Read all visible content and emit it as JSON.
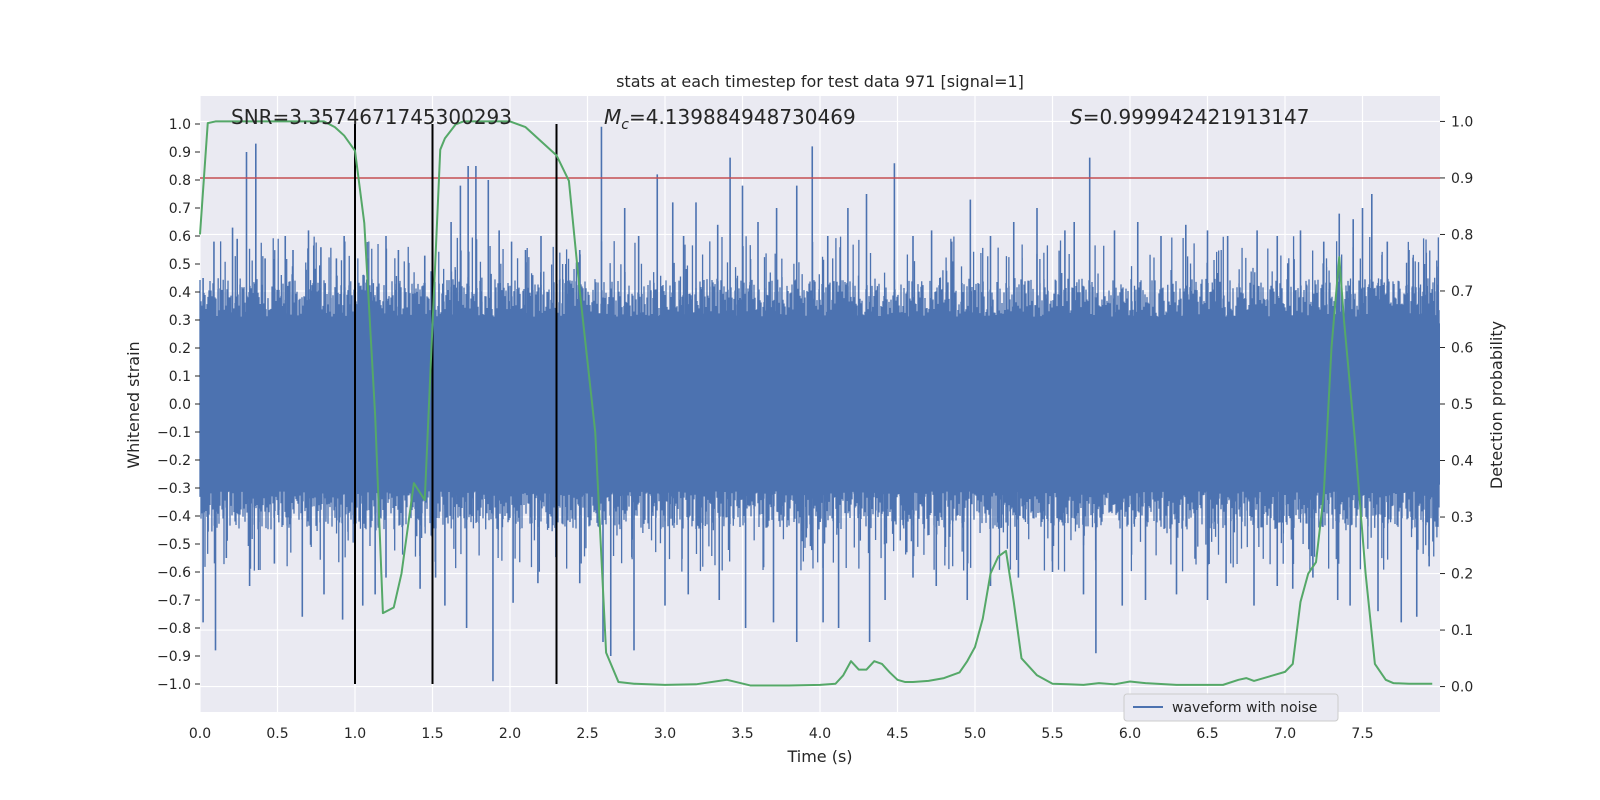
{
  "chart_data": {
    "type": "line",
    "title": "stats at each timestep for test data 971 [signal=1]",
    "xlabel": "Time (s)",
    "ylabel": "Whitened strain",
    "y2label": "Detection probability",
    "xlim": [
      0.0,
      8.0
    ],
    "ylim": [
      -1.1,
      1.1
    ],
    "y2lim": [
      -0.045,
      1.045
    ],
    "xticks": [
      0.0,
      0.5,
      1.0,
      1.5,
      2.0,
      2.5,
      3.0,
      3.5,
      4.0,
      4.5,
      5.0,
      5.5,
      6.0,
      6.5,
      7.0,
      7.5
    ],
    "xtick_labels": [
      "0.0",
      "0.5",
      "1.0",
      "1.5",
      "2.0",
      "2.5",
      "3.0",
      "3.5",
      "4.0",
      "4.5",
      "5.0",
      "5.5",
      "6.0",
      "6.5",
      "7.0",
      "7.5"
    ],
    "yticks": [
      1.0,
      0.9,
      0.8,
      0.7,
      0.6,
      0.5,
      0.4,
      0.3,
      0.2,
      0.1,
      0.0,
      -0.1,
      -0.2,
      -0.3,
      -0.4,
      -0.5,
      -0.6,
      -0.7,
      -0.8,
      -0.9,
      -1.0
    ],
    "ytick_labels": [
      "1.0",
      "0.9",
      "0.8",
      "0.7",
      "0.6",
      "0.5",
      "0.4",
      "0.3",
      "0.2",
      "0.1",
      "0.0",
      "−0.1",
      "−0.2",
      "−0.3",
      "−0.4",
      "−0.5",
      "−0.6",
      "−0.7",
      "−0.8",
      "−0.9",
      "−1.0"
    ],
    "y2ticks": [
      1.0,
      0.9,
      0.8,
      0.7,
      0.6,
      0.5,
      0.4,
      0.3,
      0.2,
      0.1,
      0.0
    ],
    "y2tick_labels": [
      "1.0",
      "0.9",
      "0.8",
      "0.7",
      "0.6",
      "0.5",
      "0.4",
      "0.3",
      "0.2",
      "0.1",
      "0.0"
    ],
    "grid": true,
    "legend_position": "lower-right",
    "annotations": {
      "snr": "SNR=3.3574671745300293",
      "mc_symbol": "M",
      "mc_sub": "c",
      "mc_value": "=4.139884948730469",
      "s_symbol": "S",
      "s_value": "=0.999942421913147"
    },
    "waveform": {
      "name": "waveform with noise",
      "color": "#4c72b0",
      "duration_s": 8.0,
      "band_upper": 0.4,
      "band_lower": -0.4,
      "upper_spikes": [
        [
          0.02,
          0.45
        ],
        [
          0.09,
          0.58
        ],
        [
          0.21,
          0.63
        ],
        [
          0.24,
          0.59
        ],
        [
          0.3,
          0.9
        ],
        [
          0.36,
          0.93
        ],
        [
          0.42,
          0.52
        ],
        [
          0.55,
          0.6
        ],
        [
          0.6,
          0.55
        ],
        [
          0.7,
          0.62
        ],
        [
          0.78,
          0.56
        ],
        [
          0.88,
          0.52
        ],
        [
          0.93,
          0.6
        ],
        [
          1.08,
          0.52
        ],
        [
          1.2,
          0.6
        ],
        [
          1.28,
          0.55
        ],
        [
          1.45,
          0.53
        ],
        [
          1.62,
          0.65
        ],
        [
          1.68,
          0.78
        ],
        [
          1.73,
          0.85
        ],
        [
          1.78,
          0.85
        ],
        [
          1.86,
          0.8
        ],
        [
          1.93,
          0.62
        ],
        [
          2.01,
          0.58
        ],
        [
          2.1,
          0.55
        ],
        [
          2.2,
          0.6
        ],
        [
          2.36,
          0.5
        ],
        [
          2.45,
          0.55
        ],
        [
          2.59,
          0.99
        ],
        [
          2.74,
          0.7
        ],
        [
          2.83,
          0.6
        ],
        [
          2.95,
          0.82
        ],
        [
          3.05,
          0.72
        ],
        [
          3.12,
          0.6
        ],
        [
          3.2,
          0.72
        ],
        [
          3.34,
          0.64
        ],
        [
          3.42,
          0.88
        ],
        [
          3.5,
          0.78
        ],
        [
          3.6,
          0.65
        ],
        [
          3.72,
          0.7
        ],
        [
          3.85,
          0.78
        ],
        [
          3.95,
          0.92
        ],
        [
          4.05,
          0.6
        ],
        [
          4.18,
          0.7
        ],
        [
          4.3,
          0.75
        ],
        [
          4.48,
          0.86
        ],
        [
          4.6,
          0.6
        ],
        [
          4.72,
          0.62
        ],
        [
          4.85,
          0.58
        ],
        [
          4.97,
          0.73
        ],
        [
          5.1,
          0.6
        ],
        [
          5.25,
          0.65
        ],
        [
          5.4,
          0.7
        ],
        [
          5.58,
          0.62
        ],
        [
          5.64,
          0.65
        ],
        [
          5.74,
          0.88
        ],
        [
          5.9,
          0.62
        ],
        [
          6.05,
          0.65
        ],
        [
          6.2,
          0.6
        ],
        [
          6.36,
          0.64
        ],
        [
          6.5,
          0.62
        ],
        [
          6.63,
          0.6
        ],
        [
          6.82,
          0.62
        ],
        [
          6.95,
          0.6
        ],
        [
          7.1,
          0.62
        ],
        [
          7.25,
          0.58
        ],
        [
          7.35,
          0.68
        ],
        [
          7.44,
          0.66
        ],
        [
          7.5,
          0.7
        ],
        [
          7.56,
          0.75
        ],
        [
          7.66,
          0.58
        ],
        [
          7.8,
          0.55
        ],
        [
          7.9,
          0.5
        ]
      ],
      "lower_spikes": [
        [
          0.02,
          -0.78
        ],
        [
          0.1,
          -0.88
        ],
        [
          0.17,
          -0.55
        ],
        [
          0.32,
          -0.65
        ],
        [
          0.48,
          -0.57
        ],
        [
          0.66,
          -0.76
        ],
        [
          0.8,
          -0.68
        ],
        [
          0.92,
          -0.77
        ],
        [
          1.05,
          -0.72
        ],
        [
          1.13,
          -0.68
        ],
        [
          1.2,
          -0.62
        ],
        [
          1.42,
          -0.66
        ],
        [
          1.52,
          -0.62
        ],
        [
          1.58,
          -0.72
        ],
        [
          1.72,
          -0.8
        ],
        [
          1.89,
          -0.99
        ],
        [
          2.02,
          -0.71
        ],
        [
          2.18,
          -0.64
        ],
        [
          2.3,
          -0.58
        ],
        [
          2.45,
          -0.64
        ],
        [
          2.6,
          -0.85
        ],
        [
          2.65,
          -0.9
        ],
        [
          2.8,
          -0.88
        ],
        [
          3.0,
          -0.72
        ],
        [
          3.15,
          -0.68
        ],
        [
          3.35,
          -0.7
        ],
        [
          3.52,
          -0.8
        ],
        [
          3.7,
          -0.78
        ],
        [
          3.85,
          -0.85
        ],
        [
          4.02,
          -0.78
        ],
        [
          4.12,
          -0.8
        ],
        [
          4.32,
          -0.85
        ],
        [
          4.42,
          -0.7
        ],
        [
          4.6,
          -0.62
        ],
        [
          4.75,
          -0.65
        ],
        [
          4.95,
          -0.7
        ],
        [
          5.1,
          -0.65
        ],
        [
          5.28,
          -0.62
        ],
        [
          5.5,
          -0.6
        ],
        [
          5.7,
          -0.68
        ],
        [
          5.78,
          -0.89
        ],
        [
          5.95,
          -0.72
        ],
        [
          6.1,
          -0.7
        ],
        [
          6.3,
          -0.68
        ],
        [
          6.5,
          -0.7
        ],
        [
          6.62,
          -0.64
        ],
        [
          6.8,
          -0.72
        ],
        [
          6.95,
          -0.65
        ],
        [
          7.05,
          -0.66
        ],
        [
          7.18,
          -0.62
        ],
        [
          7.34,
          -0.7
        ],
        [
          7.42,
          -0.72
        ],
        [
          7.6,
          -0.74
        ],
        [
          7.75,
          -0.78
        ],
        [
          7.85,
          -0.76
        ],
        [
          7.93,
          -0.58
        ]
      ]
    },
    "threshold": {
      "y2": 0.9,
      "color": "#c44e52"
    },
    "vlines": {
      "x": [
        1.0,
        1.5,
        2.3
      ],
      "y_from": -1.0,
      "y_to": 1.0,
      "color": "#000000"
    },
    "probability": {
      "color": "#55a868",
      "x": [
        0.0,
        0.05,
        0.1,
        0.2,
        0.4,
        0.6,
        0.8,
        0.87,
        0.93,
        1.0,
        1.06,
        1.13,
        1.18,
        1.25,
        1.3,
        1.38,
        1.45,
        1.55,
        1.58,
        1.65,
        1.7,
        1.8,
        2.0,
        2.1,
        2.2,
        2.3,
        2.38,
        2.45,
        2.55,
        2.62,
        2.7,
        2.8,
        3.0,
        3.2,
        3.4,
        3.55,
        3.8,
        4.0,
        4.1,
        4.15,
        4.2,
        4.25,
        4.3,
        4.35,
        4.4,
        4.45,
        4.5,
        4.55,
        4.6,
        4.7,
        4.8,
        4.9,
        4.95,
        5.0,
        5.05,
        5.1,
        5.15,
        5.2,
        5.25,
        5.3,
        5.35,
        5.4,
        5.5,
        5.6,
        5.7,
        5.8,
        5.9,
        6.0,
        6.1,
        6.3,
        6.6,
        6.7,
        6.75,
        6.8,
        6.9,
        7.0,
        7.05,
        7.1,
        7.15,
        7.2,
        7.25,
        7.3,
        7.35,
        7.38,
        7.45,
        7.52,
        7.58,
        7.65,
        7.7,
        7.8,
        7.9,
        7.95
      ],
      "y": [
        0.8,
        0.997,
        1.0,
        1.0,
        1.0,
        1.0,
        1.0,
        0.99,
        0.975,
        0.948,
        0.82,
        0.48,
        0.13,
        0.14,
        0.2,
        0.36,
        0.33,
        0.95,
        0.97,
        0.995,
        1.0,
        1.0,
        1.0,
        0.99,
        0.965,
        0.94,
        0.895,
        0.7,
        0.45,
        0.06,
        0.008,
        0.005,
        0.003,
        0.004,
        0.012,
        0.002,
        0.002,
        0.003,
        0.005,
        0.02,
        0.045,
        0.03,
        0.03,
        0.045,
        0.04,
        0.025,
        0.012,
        0.008,
        0.008,
        0.01,
        0.015,
        0.025,
        0.045,
        0.07,
        0.12,
        0.2,
        0.23,
        0.24,
        0.15,
        0.05,
        0.035,
        0.02,
        0.005,
        0.004,
        0.003,
        0.006,
        0.004,
        0.009,
        0.006,
        0.003,
        0.003,
        0.012,
        0.015,
        0.01,
        0.018,
        0.026,
        0.04,
        0.15,
        0.2,
        0.22,
        0.34,
        0.6,
        0.76,
        0.65,
        0.44,
        0.2,
        0.04,
        0.012,
        0.006,
        0.005,
        0.005,
        0.005
      ]
    }
  }
}
